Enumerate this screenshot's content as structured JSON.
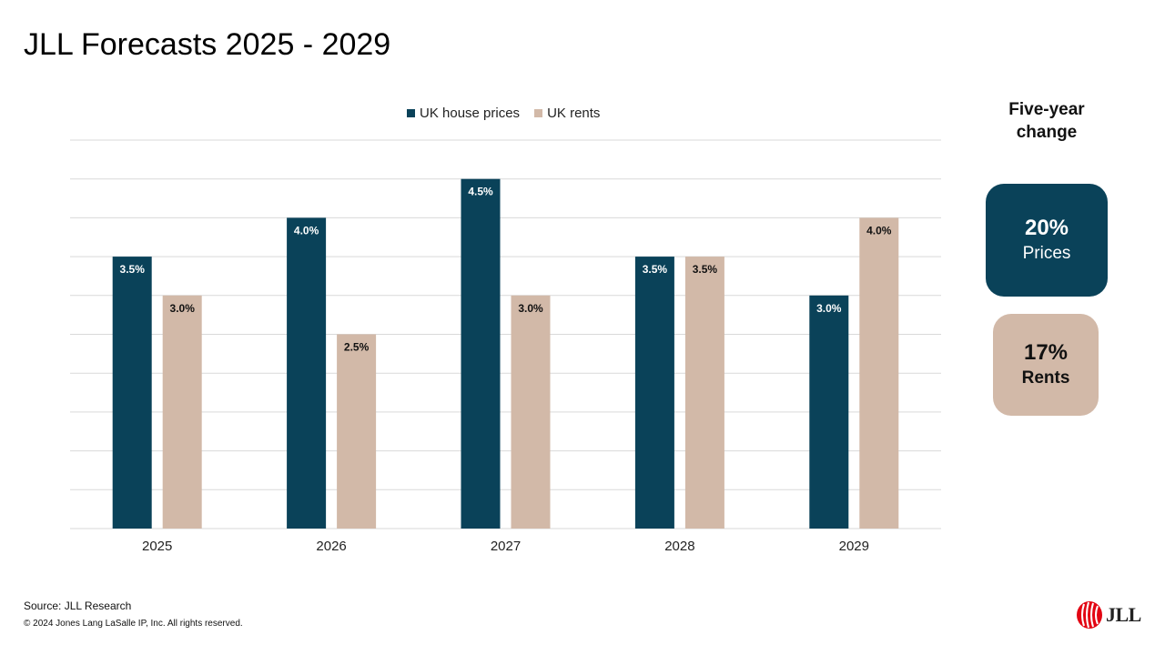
{
  "title": "JLL Forecasts 2025 - 2029",
  "colors": {
    "prices": "#0a4259",
    "rents": "#d2b9a8",
    "grid": "#d9d9d9"
  },
  "chart_data": {
    "type": "bar",
    "categories": [
      "2025",
      "2026",
      "2027",
      "2028",
      "2029"
    ],
    "series": [
      {
        "name": "UK house prices",
        "values": [
          3.5,
          4.0,
          4.5,
          3.5,
          3.0
        ],
        "labels": [
          "3.5%",
          "4.0%",
          "4.5%",
          "3.5%",
          "3.0%"
        ]
      },
      {
        "name": "UK rents",
        "values": [
          3.0,
          2.5,
          3.0,
          3.5,
          4.0
        ],
        "labels": [
          "3.0%",
          "2.5%",
          "3.0%",
          "3.5%",
          "4.0%"
        ]
      }
    ],
    "ylim": [
      0,
      5
    ],
    "grid": true,
    "legend": "top-center",
    "xlabel": "",
    "ylabel": ""
  },
  "summary": {
    "heading": "Five-year change",
    "prices": {
      "value": "20%",
      "label": "Prices"
    },
    "rents": {
      "value": "17%",
      "label": "Rents"
    }
  },
  "footer": {
    "source": "Source: JLL Research",
    "copyright": "© 2024 Jones Lang LaSalle IP, Inc. All rights reserved."
  },
  "logo": {
    "text": "JLL",
    "icon": "jll-logo-icon"
  }
}
